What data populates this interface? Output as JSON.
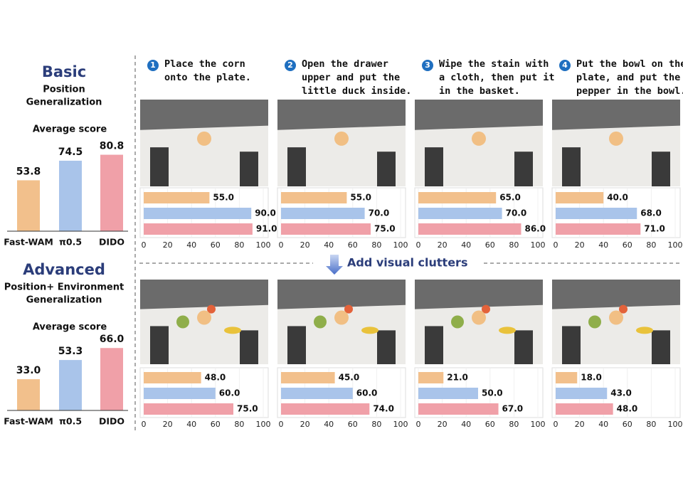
{
  "chart_data": [
    {
      "type": "bar",
      "title": "Basic",
      "subtitle": [
        "Position",
        "Generalization"
      ],
      "label": "Average score",
      "categories": [
        "Fast-WAM",
        "π0.5",
        "DIDO"
      ],
      "values": [
        53.8,
        74.5,
        80.8
      ],
      "value_labels": [
        "53.8",
        "74.5",
        "80.8"
      ],
      "colors": [
        "#f2c08c",
        "#a9c4ea",
        "#f0a0a8"
      ],
      "ylim": [
        0,
        100
      ]
    },
    {
      "type": "bar",
      "title": "Advanced",
      "subtitle": [
        "Position+ Environment",
        "Generalization"
      ],
      "label": "Average score",
      "categories": [
        "Fast-WAM",
        "π0.5",
        "DIDO"
      ],
      "values": [
        33.0,
        53.3,
        66.0
      ],
      "value_labels": [
        "33.0",
        "53.3",
        "66.0"
      ],
      "colors": [
        "#f2c08c",
        "#a9c4ea",
        "#f0a0a8"
      ],
      "ylim": [
        0,
        100
      ]
    },
    {
      "type": "hbar",
      "values": [
        55,
        90,
        91
      ],
      "value_labels": [
        "55.0",
        "90.0",
        "91.0"
      ],
      "colors": [
        "#f2c08c",
        "#a9c4ea",
        "#f0a0a8"
      ],
      "xlim": [
        0,
        100
      ],
      "xticks": [
        0,
        20,
        40,
        60,
        80,
        100
      ]
    },
    {
      "type": "hbar",
      "values": [
        55,
        70,
        75
      ],
      "value_labels": [
        "55.0",
        "70.0",
        "75.0"
      ],
      "colors": [
        "#f2c08c",
        "#a9c4ea",
        "#f0a0a8"
      ],
      "xlim": [
        0,
        100
      ],
      "xticks": [
        0,
        20,
        40,
        60,
        80,
        100
      ]
    },
    {
      "type": "hbar",
      "values": [
        65,
        70,
        86
      ],
      "value_labels": [
        "65.0",
        "70.0",
        "86.0"
      ],
      "colors": [
        "#f2c08c",
        "#a9c4ea",
        "#f0a0a8"
      ],
      "xlim": [
        0,
        100
      ],
      "xticks": [
        0,
        20,
        40,
        60,
        80,
        100
      ]
    },
    {
      "type": "hbar",
      "values": [
        40,
        68,
        71
      ],
      "value_labels": [
        "40.0",
        "68.0",
        "71.0"
      ],
      "colors": [
        "#f2c08c",
        "#a9c4ea",
        "#f0a0a8"
      ],
      "xlim": [
        0,
        100
      ],
      "xticks": [
        0,
        20,
        40,
        60,
        80,
        100
      ]
    },
    {
      "type": "hbar",
      "values": [
        48,
        60,
        75
      ],
      "value_labels": [
        "48.0",
        "60.0",
        "75.0"
      ],
      "colors": [
        "#f2c08c",
        "#a9c4ea",
        "#f0a0a8"
      ],
      "xlim": [
        0,
        100
      ],
      "xticks": [
        0,
        20,
        40,
        60,
        80,
        100
      ]
    },
    {
      "type": "hbar",
      "values": [
        45,
        60,
        74
      ],
      "value_labels": [
        "45.0",
        "60.0",
        "74.0"
      ],
      "colors": [
        "#f2c08c",
        "#a9c4ea",
        "#f0a0a8"
      ],
      "xlim": [
        0,
        100
      ],
      "xticks": [
        0,
        20,
        40,
        60,
        80,
        100
      ]
    },
    {
      "type": "hbar",
      "values": [
        21,
        50,
        67
      ],
      "value_labels": [
        "21.0",
        "50.0",
        "67.0"
      ],
      "colors": [
        "#f2c08c",
        "#a9c4ea",
        "#f0a0a8"
      ],
      "xlim": [
        0,
        100
      ],
      "xticks": [
        0,
        20,
        40,
        60,
        80,
        100
      ]
    },
    {
      "type": "hbar",
      "values": [
        18,
        43,
        48
      ],
      "value_labels": [
        "18.0",
        "43.0",
        "48.0"
      ],
      "colors": [
        "#f2c08c",
        "#a9c4ea",
        "#f0a0a8"
      ],
      "xlim": [
        0,
        100
      ],
      "xticks": [
        0,
        20,
        40,
        60,
        80,
        100
      ]
    }
  ],
  "tasks": [
    {
      "number": "1",
      "lines": [
        "Place the corn",
        "onto the plate."
      ]
    },
    {
      "number": "2",
      "lines": [
        "Open the drawer",
        "upper and put the",
        "little duck inside."
      ]
    },
    {
      "number": "3",
      "lines": [
        "Wipe the stain with",
        "a cloth, then put it",
        "in the basket."
      ]
    },
    {
      "number": "4",
      "lines": [
        "Put the bowl on the",
        "plate, and put the",
        "pepper in the bowl."
      ]
    }
  ],
  "banner": "Add visual clutters"
}
